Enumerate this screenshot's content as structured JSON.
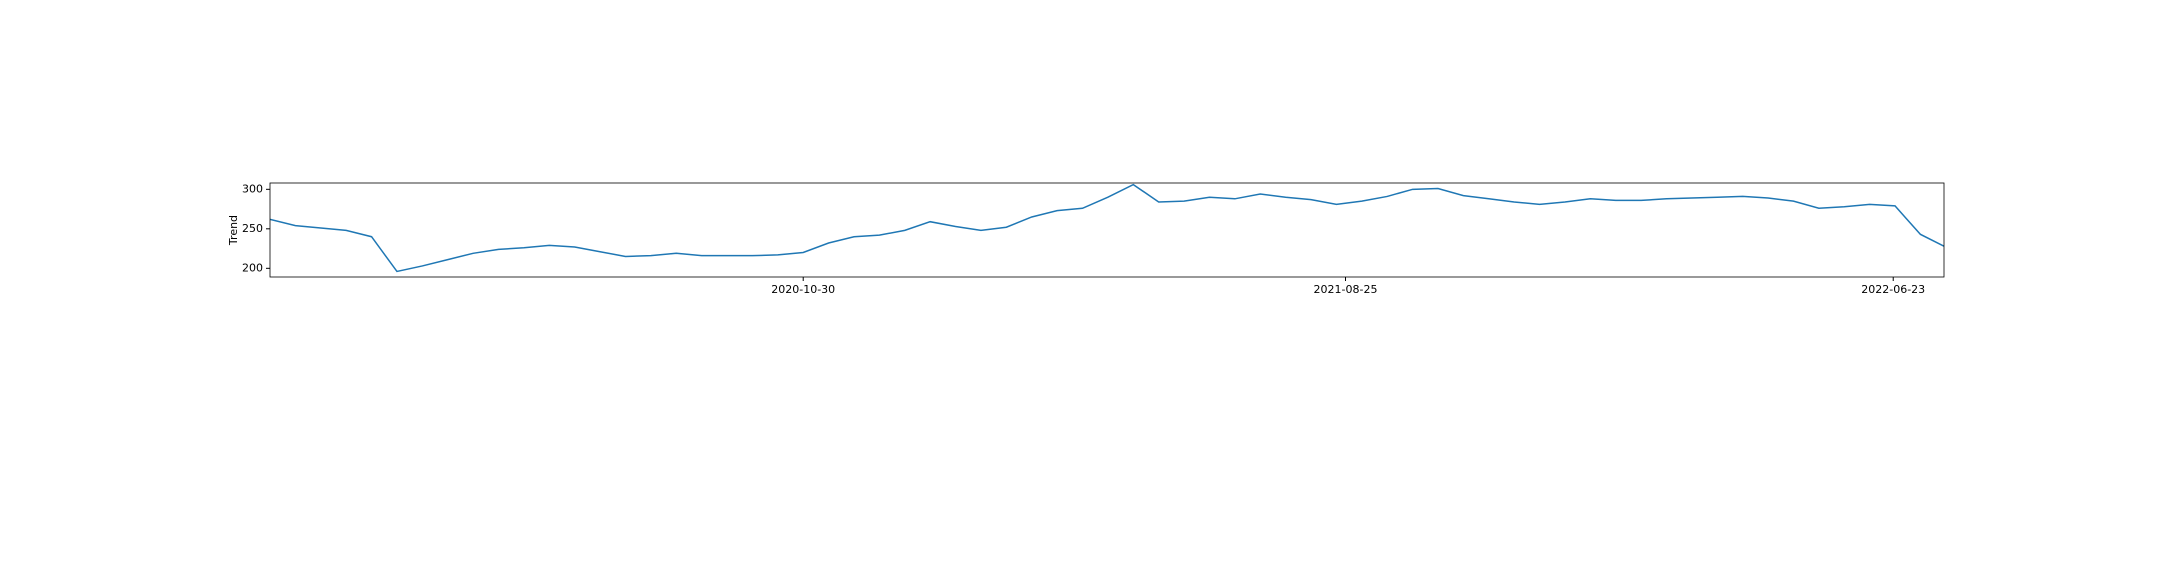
{
  "chart_data": {
    "type": "line",
    "ylabel": "Trend",
    "color": "#1f77b4",
    "x": [
      "2020-01-10",
      "2020-01-24",
      "2020-02-07",
      "2020-02-21",
      "2020-03-06",
      "2020-03-20",
      "2020-04-03",
      "2020-04-17",
      "2020-05-01",
      "2020-05-15",
      "2020-05-29",
      "2020-06-12",
      "2020-06-26",
      "2020-07-10",
      "2020-07-24",
      "2020-08-07",
      "2020-08-21",
      "2020-09-04",
      "2020-09-18",
      "2020-10-02",
      "2020-10-16",
      "2020-10-30",
      "2020-11-13",
      "2020-11-27",
      "2020-12-11",
      "2020-12-25",
      "2021-01-08",
      "2021-01-22",
      "2021-02-05",
      "2021-02-19",
      "2021-03-05",
      "2021-03-19",
      "2021-04-02",
      "2021-04-16",
      "2021-04-30",
      "2021-05-14",
      "2021-05-28",
      "2021-06-11",
      "2021-06-25",
      "2021-07-09",
      "2021-07-23",
      "2021-08-06",
      "2021-08-20",
      "2021-09-03",
      "2021-09-17",
      "2021-10-01",
      "2021-10-15",
      "2021-10-29",
      "2021-11-12",
      "2021-11-26",
      "2021-12-10",
      "2021-12-24",
      "2022-01-07",
      "2022-01-21",
      "2022-02-04",
      "2022-02-18",
      "2022-03-04",
      "2022-03-18",
      "2022-04-01",
      "2022-04-15",
      "2022-04-29",
      "2022-05-13",
      "2022-05-27",
      "2022-06-10",
      "2022-06-24",
      "2022-07-08",
      "2022-07-21"
    ],
    "values": [
      262,
      254,
      251,
      248,
      240,
      196,
      203,
      211,
      219,
      224,
      226,
      229,
      227,
      221,
      215,
      216,
      219,
      216,
      216,
      216,
      217,
      220,
      232,
      240,
      242,
      248,
      259,
      253,
      248,
      252,
      265,
      273,
      276,
      290,
      306,
      284,
      285,
      290,
      288,
      294,
      290,
      287,
      281,
      285,
      291,
      300,
      301,
      292,
      288,
      284,
      281,
      284,
      288,
      286,
      286,
      288,
      289,
      290,
      291,
      289,
      285,
      276,
      278,
      281,
      279,
      243,
      228
    ],
    "xlim": [
      "2020-01-10",
      "2022-07-21"
    ],
    "xticks": [
      "2020-10-30",
      "2021-08-25",
      "2022-06-23"
    ],
    "ylim": [
      189,
      308
    ],
    "yticks": [
      200,
      250,
      300
    ]
  }
}
